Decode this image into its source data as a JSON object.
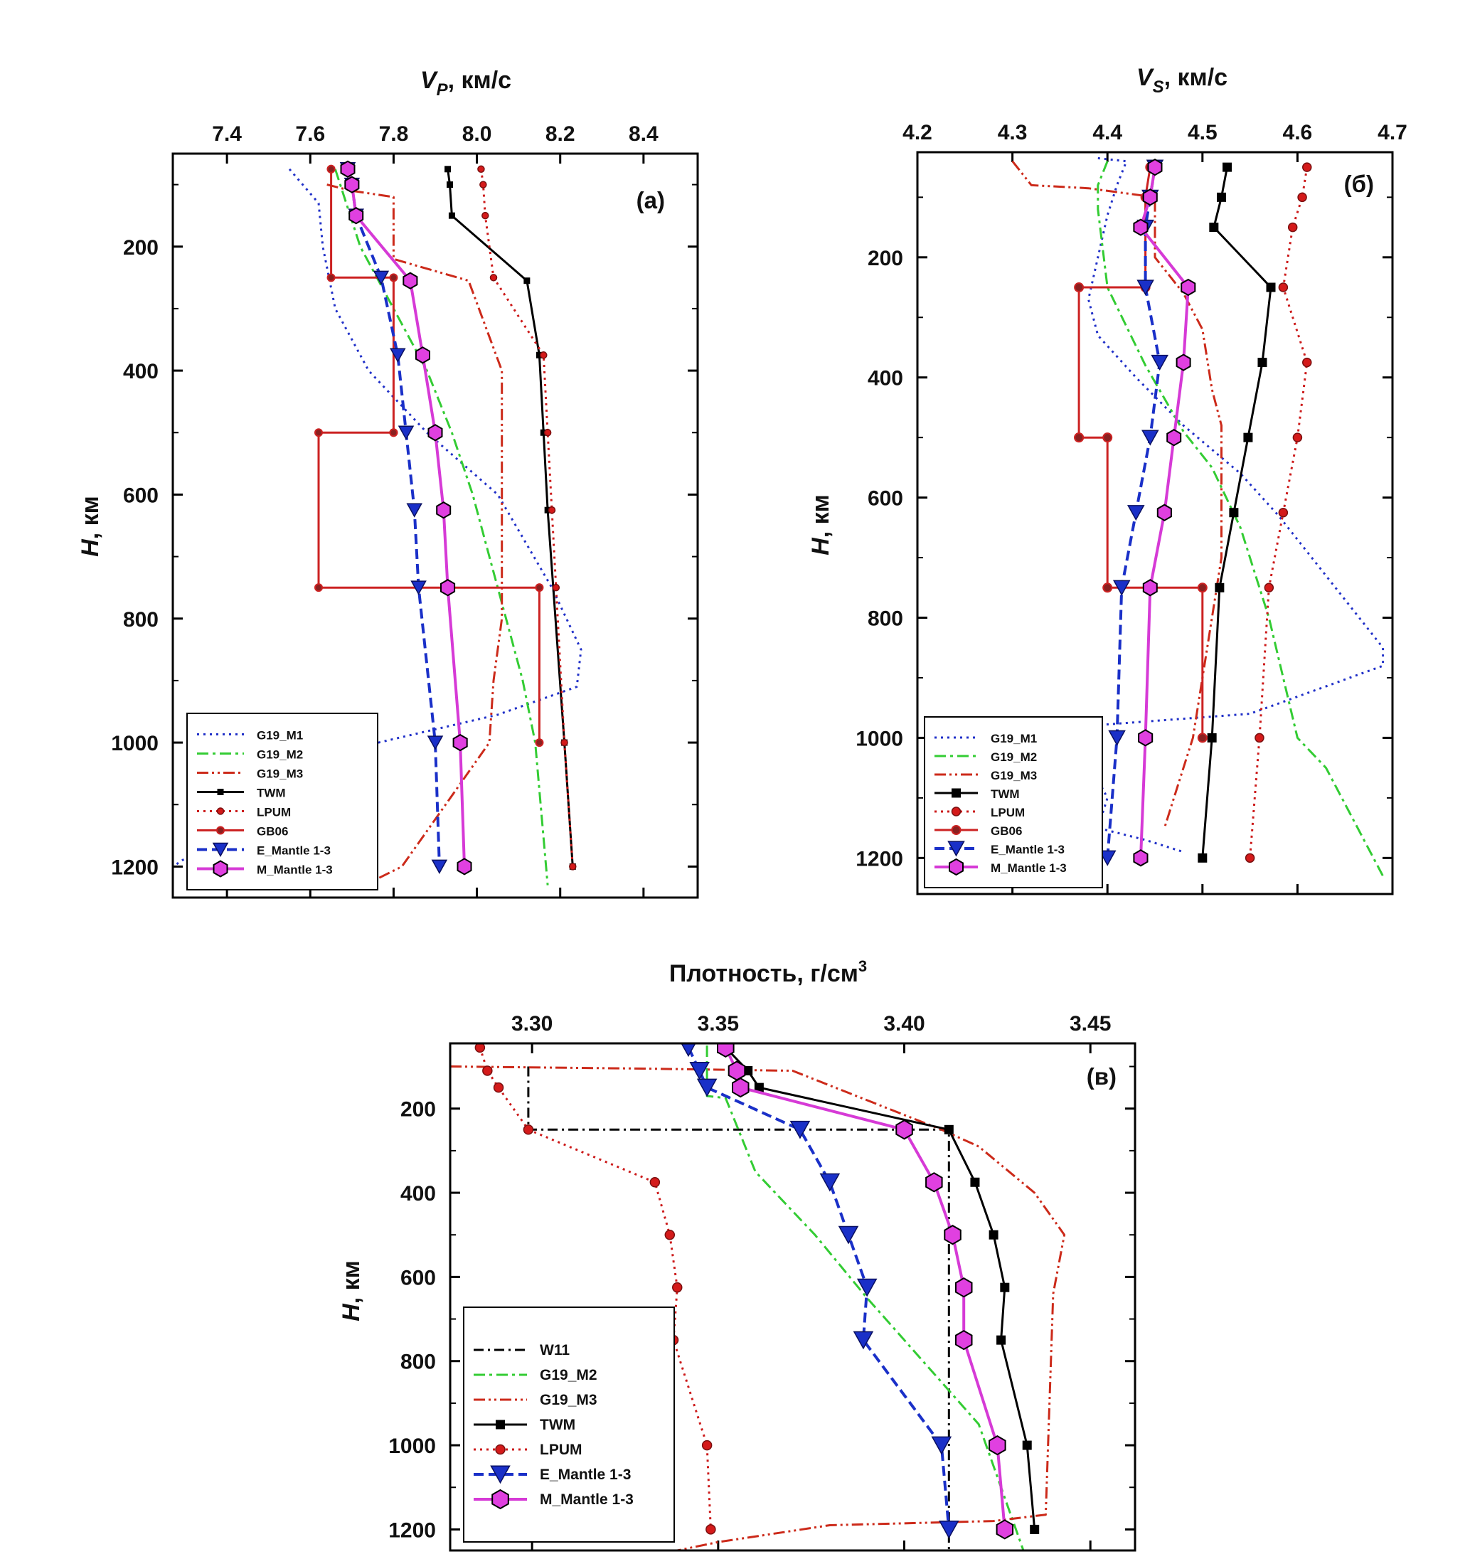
{
  "chart_data": [
    {
      "id": "vp",
      "type": "line",
      "panel_label": "(a)",
      "title": "V",
      "title_sub": "P",
      "title_suffix": ", км/с",
      "xlabel": "V_P, км/с",
      "ylabel": "H, км",
      "ylabel_main": "H",
      "ylabel_suffix": ", км",
      "xlim": [
        7.27,
        8.53
      ],
      "ylim": [
        50,
        1250
      ],
      "xticks": [
        7.4,
        7.6,
        7.8,
        8.0,
        8.2,
        8.4
      ],
      "xticklabels": [
        "7.4",
        "7.6",
        "7.8",
        "8.0",
        "8.2",
        "8.4"
      ],
      "yticks": [
        200,
        400,
        600,
        800,
        1000,
        1200
      ],
      "yticklabels": [
        "200",
        "400",
        "600",
        "800",
        "1000",
        "1200"
      ],
      "legend_position": "bottom-left",
      "series": [
        {
          "name": "G19_M1",
          "color": "#2030c8",
          "dash": "3,6",
          "width": 3,
          "marker": "none",
          "x": [
            7.55,
            7.62,
            7.63,
            7.66,
            7.74,
            7.88,
            8.05,
            8.18,
            8.25,
            8.24,
            8.05,
            7.7,
            7.27
          ],
          "y": [
            75,
            130,
            200,
            300,
            400,
            500,
            600,
            750,
            850,
            910,
            955,
            1010,
            1200
          ]
        },
        {
          "name": "G19_M2",
          "color": "#33cc33",
          "dash": "16,6,4,6",
          "width": 3,
          "marker": "none",
          "x": [
            7.66,
            7.72,
            7.8,
            7.88,
            7.94,
            7.99,
            8.03,
            8.07,
            8.11,
            8.14,
            8.17
          ],
          "y": [
            75,
            200,
            300,
            400,
            500,
            600,
            700,
            800,
            900,
            1000,
            1230
          ]
        },
        {
          "name": "G19_M3",
          "color": "#cc2a1a",
          "dash": "16,5,3,5,3,5",
          "width": 3,
          "marker": "none",
          "x": [
            7.64,
            7.7,
            7.8,
            7.8,
            7.98,
            8.06,
            8.06,
            8.06,
            8.04,
            8.03,
            7.82,
            7.73
          ],
          "y": [
            100,
            110,
            120,
            220,
            255,
            400,
            600,
            800,
            900,
            1000,
            1200,
            1230
          ]
        },
        {
          "name": "TWM",
          "color": "#000000",
          "dash": "",
          "width": 3,
          "marker": "square",
          "size": 9,
          "x": [
            7.93,
            7.935,
            7.94,
            8.12,
            8.15,
            8.16,
            8.17,
            8.21,
            8.23
          ],
          "y": [
            75,
            100,
            150,
            255,
            375,
            500,
            625,
            1000,
            1200
          ]
        },
        {
          "name": "LPUM",
          "color": "#cc1a1a",
          "dash": "3,6",
          "width": 3,
          "marker": "circle",
          "size": 9,
          "x": [
            8.01,
            8.015,
            8.02,
            8.04,
            8.16,
            8.17,
            8.18,
            8.19,
            8.21,
            8.23
          ],
          "y": [
            75,
            100,
            150,
            250,
            375,
            500,
            625,
            750,
            1000,
            1200
          ]
        },
        {
          "name": "GB06",
          "color": "#cc2222",
          "dash": "",
          "width": 3,
          "marker": "circle-dark",
          "size": 10,
          "x": [
            7.65,
            7.65,
            7.65,
            7.8,
            7.8,
            7.8,
            7.62,
            7.62,
            8.15,
            8.15
          ],
          "y": [
            75,
            75,
            250,
            250,
            500,
            500,
            500,
            750,
            750,
            1000
          ]
        },
        {
          "name": "E_Mantle 1-3",
          "color": "#1a30c8",
          "dash": "14,7",
          "width": 4,
          "marker": "triangle",
          "size": 20,
          "x": [
            7.69,
            7.7,
            7.71,
            7.77,
            7.81,
            7.83,
            7.85,
            7.86,
            7.9,
            7.91
          ],
          "y": [
            75,
            100,
            150,
            250,
            375,
            500,
            625,
            750,
            1000,
            1200
          ]
        },
        {
          "name": "M_Mantle 1-3",
          "color": "#d63ad6",
          "dash": "",
          "width": 4,
          "marker": "hexagon",
          "size": 22,
          "x": [
            7.69,
            7.7,
            7.71,
            7.84,
            7.87,
            7.9,
            7.92,
            7.93,
            7.96,
            7.97
          ],
          "y": [
            75,
            100,
            150,
            255,
            375,
            500,
            625,
            750,
            1000,
            1200
          ]
        }
      ]
    },
    {
      "id": "vs",
      "type": "line",
      "panel_label": "(б)",
      "title": "V",
      "title_sub": "S",
      "title_suffix": ", км/с",
      "xlabel": "V_S, км/с",
      "ylabel": "H, км",
      "ylabel_main": "H",
      "ylabel_suffix": ", км",
      "xlim": [
        4.2,
        4.7
      ],
      "ylim": [
        25,
        1260
      ],
      "xticks": [
        4.2,
        4.3,
        4.4,
        4.5,
        4.6,
        4.7
      ],
      "xticklabels": [
        "4.2",
        "4.3",
        "4.4",
        "4.5",
        "4.6",
        "4.7"
      ],
      "yticks": [
        200,
        400,
        600,
        800,
        1000,
        1200
      ],
      "yticklabels": [
        "200",
        "400",
        "600",
        "800",
        "1000",
        "1200"
      ],
      "legend_position": "bottom-left",
      "series": [
        {
          "name": "G19_M1",
          "color": "#2030c8",
          "dash": "3,6",
          "width": 3,
          "marker": "none",
          "x": [
            4.39,
            4.42,
            4.41,
            4.4,
            4.39,
            4.38,
            4.39,
            4.43,
            4.48,
            4.54,
            4.58,
            4.65,
            4.69,
            4.69,
            4.55,
            4.38,
            4.37,
            4.4,
            4.39,
            4.44,
            4.48
          ],
          "y": [
            35,
            40,
            80,
            130,
            200,
            270,
            330,
            400,
            480,
            560,
            630,
            770,
            850,
            880,
            960,
            980,
            1010,
            1100,
            1150,
            1170,
            1190
          ]
        },
        {
          "name": "G19_M2",
          "color": "#33cc33",
          "dash": "16,6,4,6",
          "width": 3,
          "marker": "none",
          "x": [
            4.4,
            4.39,
            4.39,
            4.4,
            4.44,
            4.48,
            4.51,
            4.54,
            4.57,
            4.6,
            4.63,
            4.69
          ],
          "y": [
            40,
            80,
            120,
            250,
            380,
            490,
            550,
            650,
            800,
            1000,
            1050,
            1230
          ]
        },
        {
          "name": "G19_M3",
          "color": "#cc2a1a",
          "dash": "16,5,3,5,3,5",
          "width": 3,
          "marker": "none",
          "x": [
            4.3,
            4.32,
            4.38,
            4.45,
            4.45,
            4.48,
            4.5,
            4.51,
            4.52,
            4.52,
            4.52,
            4.51,
            4.5,
            4.49,
            4.47,
            4.46
          ],
          "y": [
            40,
            80,
            85,
            100,
            200,
            260,
            320,
            420,
            480,
            600,
            700,
            800,
            900,
            1000,
            1100,
            1150
          ]
        },
        {
          "name": "TWM",
          "color": "#000000",
          "dash": "",
          "width": 3,
          "marker": "square",
          "size": 13,
          "x": [
            4.526,
            4.52,
            4.512,
            4.572,
            4.563,
            4.548,
            4.533,
            4.518,
            4.51,
            4.5
          ],
          "y": [
            50,
            100,
            150,
            250,
            375,
            500,
            625,
            750,
            1000,
            1200
          ]
        },
        {
          "name": "LPUM",
          "color": "#cc1a1a",
          "dash": "3,6",
          "width": 3,
          "marker": "circle",
          "size": 12,
          "x": [
            4.61,
            4.605,
            4.595,
            4.585,
            4.61,
            4.6,
            4.585,
            4.57,
            4.56,
            4.55
          ],
          "y": [
            50,
            100,
            150,
            250,
            375,
            500,
            625,
            750,
            1000,
            1200
          ]
        },
        {
          "name": "GB06",
          "color": "#cc2222",
          "dash": "",
          "width": 3,
          "marker": "circle-dark",
          "size": 12,
          "x": [
            4.445,
            4.44,
            4.44,
            4.37,
            4.37,
            4.37,
            4.4,
            4.4,
            4.5,
            4.5
          ],
          "y": [
            50,
            100,
            250,
            250,
            500,
            500,
            500,
            750,
            750,
            1000
          ]
        },
        {
          "name": "E_Mantle 1-3",
          "color": "#1a30c8",
          "dash": "14,7",
          "width": 4,
          "marker": "triangle",
          "size": 22,
          "x": [
            4.45,
            4.445,
            4.44,
            4.44,
            4.455,
            4.445,
            4.43,
            4.415,
            4.41,
            4.4
          ],
          "y": [
            50,
            100,
            150,
            250,
            375,
            500,
            625,
            750,
            1000,
            1200
          ]
        },
        {
          "name": "M_Mantle 1-3",
          "color": "#d63ad6",
          "dash": "",
          "width": 4,
          "marker": "hexagon",
          "size": 22,
          "x": [
            4.45,
            4.445,
            4.435,
            4.485,
            4.48,
            4.47,
            4.46,
            4.445,
            4.44,
            4.435
          ],
          "y": [
            50,
            100,
            150,
            250,
            375,
            500,
            625,
            750,
            1000,
            1200
          ]
        }
      ]
    },
    {
      "id": "rho",
      "type": "line",
      "panel_label": "(в)",
      "title": "Плотность, г/см",
      "title_sup": "3",
      "xlabel": "Плотность, г/см3",
      "ylabel": "H, км",
      "ylabel_main": "H",
      "ylabel_suffix": ", км",
      "xlim": [
        3.278,
        3.462
      ],
      "ylim": [
        45,
        1250
      ],
      "xticks": [
        3.3,
        3.35,
        3.4,
        3.45
      ],
      "xticklabels": [
        "3.30",
        "3.35",
        "3.40",
        "3.45"
      ],
      "yticks": [
        200,
        400,
        600,
        800,
        1000,
        1200
      ],
      "yticklabels": [
        "200",
        "400",
        "600",
        "800",
        "1000",
        "1200"
      ],
      "legend_position": "bottom-left",
      "series": [
        {
          "name": "W11",
          "color": "#000000",
          "dash": "14,6,3,6",
          "width": 3,
          "marker": "none",
          "x": [
            3.299,
            3.299,
            3.412,
            3.412,
            3.412
          ],
          "y": [
            100,
            250,
            250,
            1200,
            1250
          ]
        },
        {
          "name": "G19_M2",
          "color": "#33cc33",
          "dash": "16,6,4,6",
          "width": 3,
          "marker": "none",
          "x": [
            3.347,
            3.347,
            3.352,
            3.36,
            3.376,
            3.39,
            3.405,
            3.42,
            3.432
          ],
          "y": [
            50,
            170,
            175,
            350,
            500,
            650,
            800,
            950,
            1250
          ]
        },
        {
          "name": "G19_M3",
          "color": "#cc2a1a",
          "dash": "16,5,3,5,3,5",
          "width": 3,
          "marker": "none",
          "x": [
            3.278,
            3.33,
            3.37,
            3.41,
            3.42,
            3.435,
            3.443,
            3.44,
            3.438,
            3.424,
            3.38,
            3.35,
            3.339
          ],
          "y": [
            100,
            105,
            110,
            250,
            290,
            400,
            500,
            640,
            1165,
            1180,
            1190,
            1230,
            1250
          ]
        },
        {
          "name": "TWM",
          "color": "#000000",
          "dash": "",
          "width": 3,
          "marker": "square",
          "size": 13,
          "x": [
            3.352,
            3.358,
            3.361,
            3.412,
            3.419,
            3.424,
            3.427,
            3.426,
            3.433,
            3.435
          ],
          "y": [
            55,
            110,
            150,
            250,
            375,
            500,
            625,
            750,
            1000,
            1200
          ]
        },
        {
          "name": "LPUM",
          "color": "#cc1a1a",
          "dash": "3,6",
          "width": 3,
          "marker": "circle",
          "size": 13,
          "x": [
            3.286,
            3.288,
            3.291,
            3.299,
            3.333,
            3.337,
            3.339,
            3.338,
            3.347,
            3.348
          ],
          "y": [
            55,
            110,
            150,
            250,
            375,
            500,
            625,
            750,
            1000,
            1200
          ]
        },
        {
          "name": "E_Mantle 1-3",
          "color": "#1a30c8",
          "dash": "14,7",
          "width": 4,
          "marker": "triangle",
          "size": 26,
          "x": [
            3.342,
            3.345,
            3.347,
            3.372,
            3.38,
            3.385,
            3.39,
            3.389,
            3.41,
            3.412
          ],
          "y": [
            55,
            110,
            150,
            250,
            375,
            500,
            625,
            750,
            1000,
            1200
          ]
        },
        {
          "name": "M_Mantle 1-3",
          "color": "#d63ad6",
          "dash": "",
          "width": 4,
          "marker": "hexagon",
          "size": 26,
          "x": [
            3.352,
            3.355,
            3.356,
            3.4,
            3.408,
            3.413,
            3.416,
            3.416,
            3.425,
            3.427
          ],
          "y": [
            55,
            110,
            150,
            250,
            375,
            500,
            625,
            750,
            1000,
            1200
          ]
        }
      ]
    }
  ]
}
